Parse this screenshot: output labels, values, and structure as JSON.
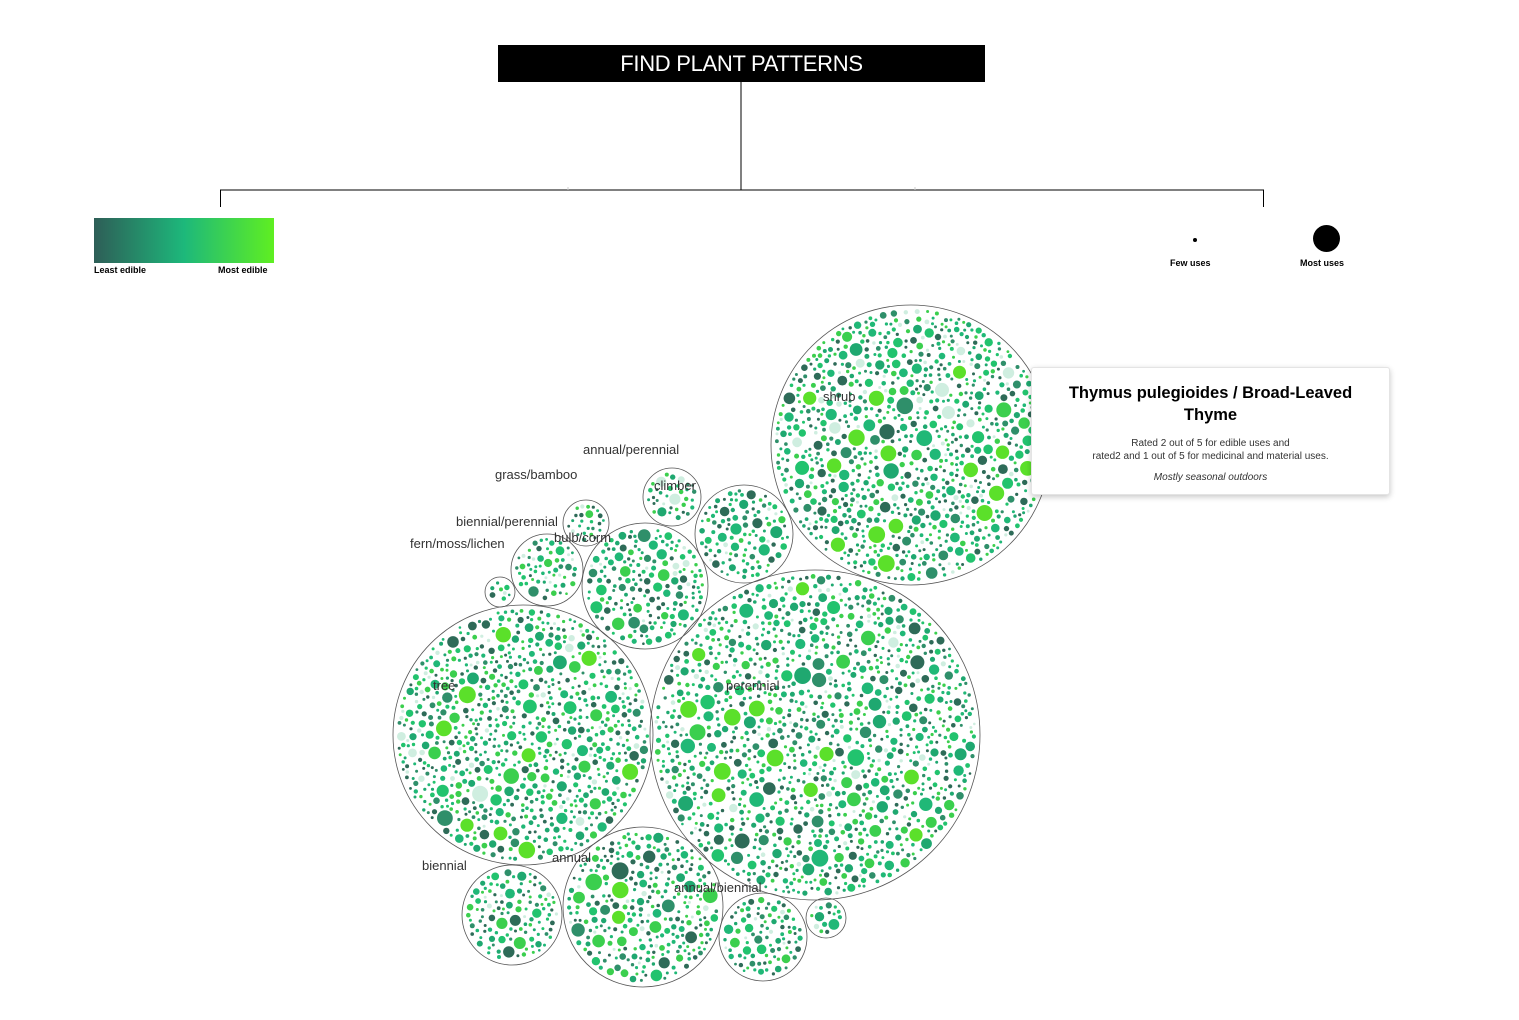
{
  "header": {
    "title": "FIND PLANT PATTERNS"
  },
  "legend": {
    "color": {
      "least_label": "Least edible",
      "most_label": "Most edible",
      "gradient_colors": [
        "#2e5e57",
        "#1db87b",
        "#5fef21"
      ]
    },
    "size": {
      "few_label": "Few uses",
      "most_label": "Most uses"
    }
  },
  "tooltip": {
    "title": "Thymus pulegioides / Broad-Leaved Thyme",
    "line1": "Rated 2 out of 5 for edible uses and",
    "line2": "rated2 and 1 out of 5 for medicinal and material uses.",
    "season": "Mostly seasonal outdoors"
  },
  "colors": {
    "palette": [
      "#2e6b58",
      "#2f8f6a",
      "#1fa870",
      "#20b877",
      "#22c36e",
      "#3bcf4e",
      "#5be02a",
      "#cfeee0"
    ],
    "outline": "#555555"
  },
  "chart_data": {
    "type": "packed-bubble",
    "groups": [
      {
        "name": "shrub"
      },
      {
        "name": "perennial"
      },
      {
        "name": "tree"
      },
      {
        "name": "annual"
      },
      {
        "name": "biennial"
      },
      {
        "name": "annual/biennial"
      },
      {
        "name": "bulb/corm"
      },
      {
        "name": "climber"
      },
      {
        "name": "annual/perennial"
      },
      {
        "name": "grass/bamboo"
      },
      {
        "name": "biennial/perennial"
      },
      {
        "name": "fern/moss/lichen"
      }
    ]
  }
}
